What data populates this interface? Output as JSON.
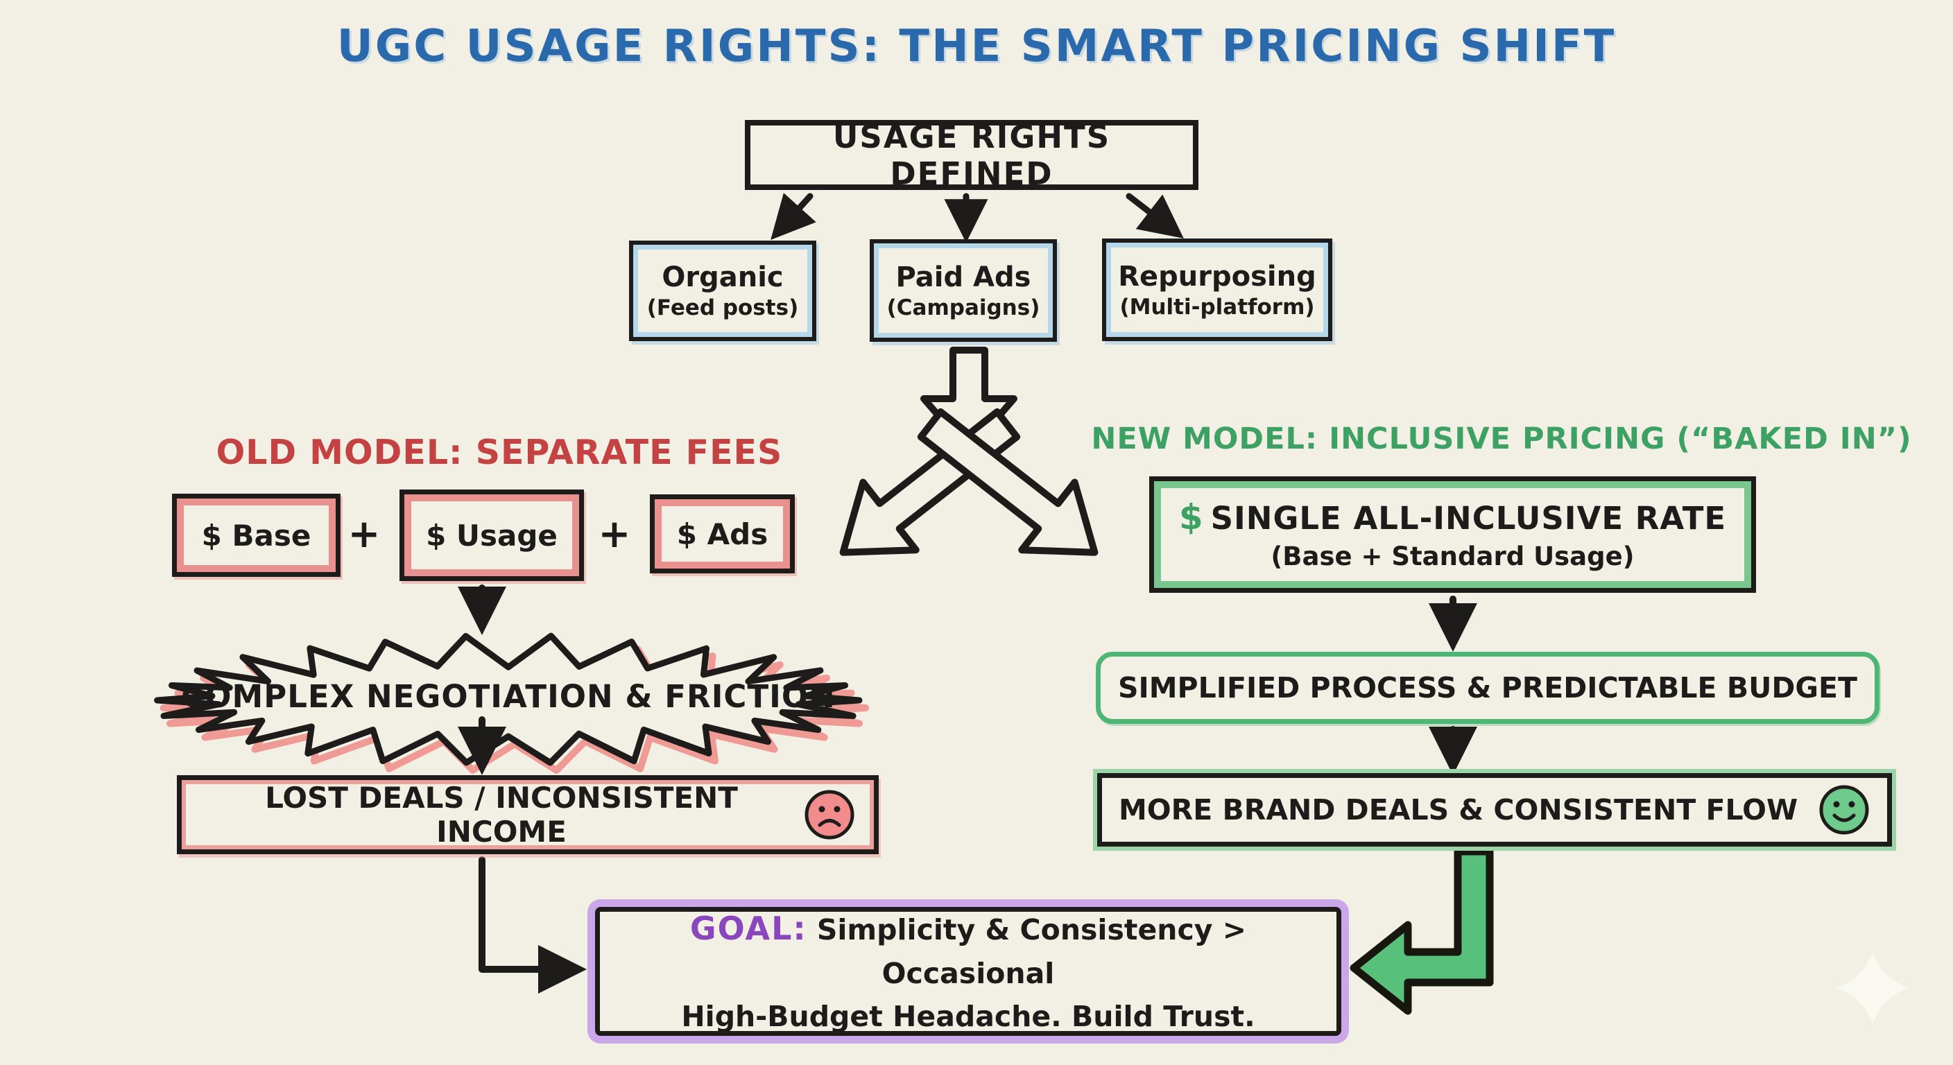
{
  "colors": {
    "background": "#f2efe4",
    "ink": "#1d1c1a",
    "title_blue": "#2b69ad",
    "branch_border_blue": "#b5d7ea",
    "old_red": "#c54243",
    "fee_border_pink": "#e9918f",
    "new_green": "#3da163",
    "green_arrow_fill": "#57c17b",
    "sad_face_fill": "#f28c8c",
    "smiley_face_fill": "#6fcb8b",
    "goal_purple": "#8a46bd",
    "goal_glow": "#c9a7e8"
  },
  "title": "UGC USAGE RIGHTS: THE SMART PRICING SHIFT",
  "root_box": "USAGE RIGHTS DEFINED",
  "branches": [
    {
      "title": "Organic",
      "subtitle": "(Feed posts)"
    },
    {
      "title": "Paid Ads",
      "subtitle": "(Campaigns)"
    },
    {
      "title": "Repurposing",
      "subtitle": "(Multi-platform)"
    }
  ],
  "old_model": {
    "heading": "OLD MODEL: SEPARATE FEES",
    "fees": [
      "$ Base",
      "$ Usage",
      "$ Ads"
    ],
    "plus": "+",
    "friction": "COMPLEX NEGOTIATION & FRICTION",
    "outcome": "LOST DEALS / INCONSISTENT INCOME",
    "outcome_icon": "sad-face"
  },
  "new_model": {
    "heading": "NEW MODEL: INCLUSIVE PRICING (“BAKED IN”)",
    "rate_dollar": "$",
    "rate_title": "SINGLE ALL-INCLUSIVE RATE",
    "rate_subtitle": "(Base + Standard Usage)",
    "process": "SIMPLIFIED PROCESS & PREDICTABLE BUDGET",
    "outcome": "MORE BRAND DEALS & CONSISTENT FLOW",
    "outcome_icon": "smiley-face"
  },
  "goal": {
    "label": "GOAL:",
    "line1": "Simplicity & Consistency > Occasional",
    "line2": "High-Budget Headache. Build Trust."
  },
  "decorations": {
    "sparkle_icon": "four-point-star"
  }
}
